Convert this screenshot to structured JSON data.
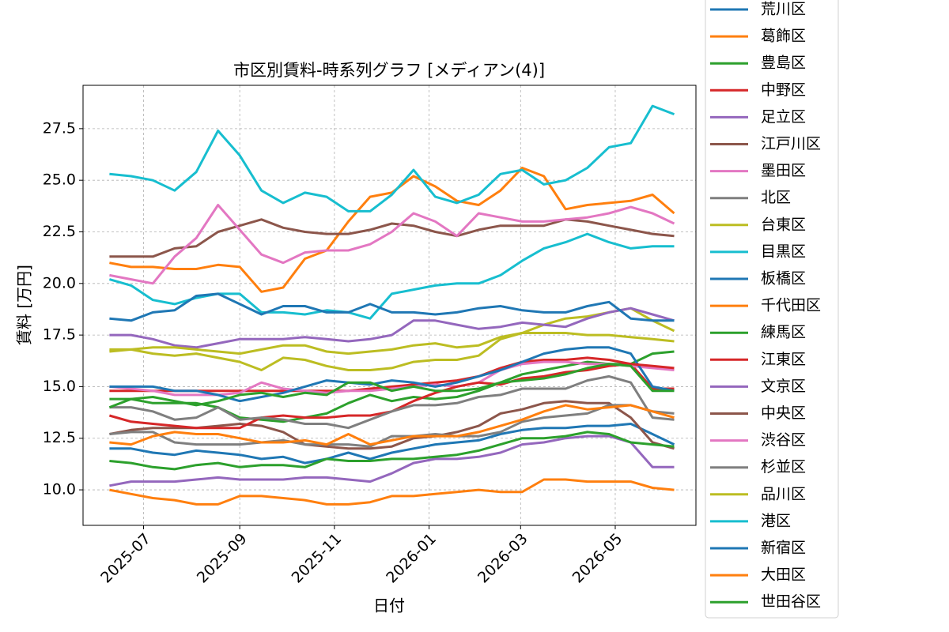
{
  "chart_data": {
    "type": "line",
    "title": "市区別賃料-時系列グラフ [メディアン(4)]",
    "xlabel": "日付",
    "ylabel": "賃料 [万円]",
    "x": [
      "2025-06-09",
      "2025-06-23",
      "2025-07-07",
      "2025-07-21",
      "2025-08-04",
      "2025-08-18",
      "2025-09-01",
      "2025-09-15",
      "2025-09-29",
      "2025-10-13",
      "2025-10-27",
      "2025-11-10",
      "2025-11-24",
      "2025-12-08",
      "2025-12-22",
      "2026-01-05",
      "2026-01-19",
      "2026-02-02",
      "2026-02-16",
      "2026-03-02",
      "2026-03-16",
      "2026-03-30",
      "2026-04-13",
      "2026-04-27",
      "2026-05-11",
      "2026-05-25",
      "2026-06-08"
    ],
    "xlim": [
      "2025-05-23",
      "2026-06-22"
    ],
    "xticks": [
      "2025-07",
      "2025-09",
      "2025-11",
      "2026-01",
      "2026-03",
      "2026-05"
    ],
    "ylim": [
      8.28,
      29.6
    ],
    "yticks": [
      {
        "value": 10,
        "label": "10.0"
      },
      12.5,
      {
        "value": 15,
        "label": "15.0"
      },
      17.5,
      {
        "value": 20,
        "label": "20.0"
      },
      22.5,
      {
        "value": 25,
        "label": "25.0"
      },
      27.5
    ],
    "grid": true,
    "legend": "outside right",
    "series": [
      {
        "name": "荒川区",
        "color": "#1f77b4",
        "values": [
          12.0,
          12.0,
          11.8,
          11.7,
          11.9,
          11.8,
          11.7,
          11.5,
          11.6,
          11.3,
          11.5,
          11.8,
          11.5,
          11.8,
          12.0,
          12.2,
          12.3,
          12.4,
          12.7,
          12.9,
          13.0,
          13.0,
          13.1,
          13.1,
          13.2,
          12.7,
          12.2
        ]
      },
      {
        "name": "葛飾区",
        "color": "#ff7f0e",
        "values": [
          10.0,
          9.8,
          9.6,
          9.5,
          9.3,
          9.3,
          9.7,
          9.7,
          9.6,
          9.5,
          9.3,
          9.3,
          9.4,
          9.7,
          9.7,
          9.8,
          9.9,
          10.0,
          9.9,
          9.9,
          10.5,
          10.5,
          10.4,
          10.4,
          10.4,
          10.1,
          10.0
        ]
      },
      {
        "name": "豊島区",
        "color": "#2ca02c",
        "values": [
          14.4,
          14.4,
          14.2,
          14.2,
          14.2,
          14.0,
          13.5,
          13.4,
          13.3,
          13.5,
          13.7,
          14.2,
          14.6,
          14.3,
          14.5,
          14.4,
          14.5,
          14.8,
          15.2,
          15.6,
          15.8,
          16.0,
          16.2,
          16.1,
          16.1,
          16.6,
          16.7
        ]
      },
      {
        "name": "中野区",
        "color": "#d62728",
        "values": [
          14.8,
          14.8,
          14.8,
          14.8,
          14.8,
          14.8,
          14.8,
          14.8,
          14.8,
          14.8,
          14.8,
          14.8,
          14.9,
          15.0,
          15.1,
          15.2,
          15.3,
          15.5,
          15.9,
          16.2,
          16.3,
          16.3,
          16.4,
          16.3,
          16.1,
          14.9,
          14.9
        ]
      },
      {
        "name": "足立区",
        "color": "#9467bd",
        "values": [
          10.2,
          10.4,
          10.4,
          10.4,
          10.5,
          10.6,
          10.5,
          10.5,
          10.5,
          10.6,
          10.6,
          10.5,
          10.4,
          10.8,
          11.3,
          11.5,
          11.5,
          11.6,
          11.8,
          12.2,
          12.3,
          12.5,
          12.6,
          12.6,
          12.3,
          11.1,
          11.1
        ]
      },
      {
        "name": "江戸川区",
        "color": "#8c564b",
        "values": [
          12.7,
          12.9,
          13.0,
          13.0,
          13.0,
          13.1,
          13.2,
          13.1,
          12.8,
          12.2,
          12.1,
          12.0,
          12.0,
          12.1,
          12.5,
          12.6,
          12.8,
          13.1,
          13.7,
          13.9,
          14.2,
          14.3,
          14.2,
          14.2,
          13.5,
          12.3,
          12.0
        ]
      },
      {
        "name": "墨田区",
        "color": "#e377c2",
        "values": [
          15.0,
          14.9,
          14.8,
          14.6,
          14.6,
          14.6,
          14.7,
          15.2,
          14.9,
          14.8,
          14.7,
          14.8,
          14.8,
          14.9,
          15.0,
          15.1,
          15.0,
          15.2,
          15.8,
          16.1,
          16.2,
          16.2,
          16.1,
          16.1,
          16.0,
          15.9,
          15.8
        ]
      },
      {
        "name": "北区",
        "color": "#7f7f7f",
        "values": [
          12.7,
          12.8,
          12.8,
          12.3,
          12.2,
          12.2,
          12.2,
          12.3,
          12.4,
          12.2,
          12.2,
          12.2,
          12.1,
          12.6,
          12.6,
          12.7,
          12.6,
          12.6,
          12.8,
          13.3,
          13.5,
          13.6,
          13.7,
          14.1,
          14.1,
          13.8,
          13.7
        ]
      },
      {
        "name": "台東区",
        "color": "#bcbd22",
        "values": [
          16.8,
          16.8,
          16.6,
          16.5,
          16.6,
          16.4,
          16.2,
          15.8,
          16.4,
          16.3,
          16.0,
          15.8,
          15.8,
          15.9,
          16.2,
          16.3,
          16.3,
          16.5,
          17.3,
          17.6,
          18.0,
          18.3,
          18.4,
          18.6,
          18.8,
          18.2,
          17.7
        ]
      },
      {
        "name": "目黒区",
        "color": "#17becf",
        "values": [
          20.2,
          19.9,
          19.2,
          19.0,
          19.3,
          19.5,
          19.5,
          18.6,
          18.6,
          18.5,
          18.7,
          18.6,
          18.3,
          19.5,
          19.7,
          19.9,
          20.0,
          20.0,
          20.4,
          21.1,
          21.7,
          22.0,
          22.4,
          22.0,
          21.7,
          21.8,
          21.8
        ]
      },
      {
        "name": "板橋区",
        "color": "#1f77b4",
        "values": [
          15.0,
          15.0,
          15.0,
          14.8,
          14.8,
          14.6,
          14.3,
          14.5,
          14.7,
          15.0,
          15.3,
          15.2,
          15.1,
          15.3,
          15.2,
          15.0,
          15.2,
          15.5,
          15.8,
          16.2,
          16.6,
          16.8,
          16.9,
          16.9,
          16.6,
          15.0,
          14.8
        ]
      },
      {
        "name": "千代田区",
        "color": "#ff7f0e",
        "values": [
          21.0,
          20.8,
          20.8,
          20.7,
          20.7,
          20.9,
          20.8,
          19.6,
          19.8,
          21.2,
          21.6,
          23.0,
          24.2,
          24.4,
          25.2,
          24.7,
          24.0,
          23.8,
          24.5,
          25.6,
          25.2,
          23.6,
          23.8,
          23.9,
          24.0,
          24.3,
          23.4
        ]
      },
      {
        "name": "練馬区",
        "color": "#2ca02c",
        "values": [
          11.4,
          11.3,
          11.1,
          11.0,
          11.2,
          11.3,
          11.1,
          11.2,
          11.2,
          11.1,
          11.5,
          11.4,
          11.4,
          11.5,
          11.5,
          11.6,
          11.7,
          11.9,
          12.2,
          12.5,
          12.5,
          12.6,
          12.8,
          12.7,
          12.3,
          12.2,
          12.1
        ]
      },
      {
        "name": "江東区",
        "color": "#d62728",
        "values": [
          13.6,
          13.3,
          13.2,
          13.1,
          13.0,
          13.0,
          13.0,
          13.5,
          13.6,
          13.5,
          13.5,
          13.6,
          13.6,
          13.8,
          14.3,
          14.7,
          15.0,
          15.2,
          15.1,
          15.4,
          15.5,
          15.7,
          15.8,
          16.0,
          16.1,
          16.0,
          15.9
        ]
      },
      {
        "name": "文京区",
        "color": "#9467bd",
        "values": [
          17.5,
          17.5,
          17.3,
          17.0,
          16.9,
          17.1,
          17.3,
          17.3,
          17.3,
          17.4,
          17.3,
          17.2,
          17.3,
          17.5,
          18.2,
          18.2,
          18.0,
          17.8,
          17.9,
          18.1,
          18.0,
          17.9,
          18.3,
          18.6,
          18.8,
          18.5,
          18.2
        ]
      },
      {
        "name": "中央区",
        "color": "#8c564b",
        "values": [
          21.3,
          21.3,
          21.3,
          21.7,
          21.8,
          22.5,
          22.8,
          23.1,
          22.7,
          22.5,
          22.4,
          22.4,
          22.6,
          22.9,
          22.8,
          22.5,
          22.3,
          22.6,
          22.8,
          22.8,
          22.8,
          23.1,
          23.0,
          22.8,
          22.6,
          22.4,
          22.3
        ]
      },
      {
        "name": "渋谷区",
        "color": "#e377c2",
        "values": [
          20.4,
          20.2,
          20.0,
          21.3,
          22.2,
          23.8,
          22.6,
          21.4,
          21.0,
          21.5,
          21.6,
          21.6,
          21.9,
          22.5,
          23.4,
          23.0,
          22.3,
          23.4,
          23.2,
          23.0,
          23.0,
          23.1,
          23.2,
          23.4,
          23.7,
          23.4,
          22.9
        ]
      },
      {
        "name": "杉並区",
        "color": "#7f7f7f",
        "values": [
          14.0,
          14.0,
          13.8,
          13.4,
          13.5,
          14.0,
          13.4,
          13.5,
          13.4,
          13.2,
          13.2,
          13.0,
          13.4,
          13.8,
          14.1,
          14.1,
          14.2,
          14.5,
          14.6,
          14.9,
          14.9,
          14.9,
          15.3,
          15.5,
          15.2,
          13.5,
          13.4
        ]
      },
      {
        "name": "品川区",
        "color": "#bcbd22",
        "values": [
          16.7,
          16.8,
          16.9,
          16.9,
          16.8,
          16.7,
          16.6,
          16.8,
          17.0,
          17.0,
          16.7,
          16.6,
          16.7,
          16.8,
          17.0,
          17.1,
          16.9,
          17.0,
          17.4,
          17.6,
          17.6,
          17.6,
          17.5,
          17.5,
          17.4,
          17.3,
          17.2
        ]
      },
      {
        "name": "港区",
        "color": "#17becf",
        "values": [
          25.3,
          25.2,
          25.0,
          24.5,
          25.4,
          27.4,
          26.2,
          24.5,
          23.9,
          24.4,
          24.2,
          23.5,
          23.5,
          24.3,
          25.5,
          24.2,
          23.9,
          24.3,
          25.3,
          25.5,
          24.8,
          25.0,
          25.6,
          26.6,
          26.8,
          28.6,
          28.2
        ]
      },
      {
        "name": "新宿区",
        "color": "#1f77b4",
        "values": [
          18.3,
          18.2,
          18.6,
          18.7,
          19.4,
          19.5,
          19.0,
          18.5,
          18.9,
          18.9,
          18.6,
          18.6,
          19.0,
          18.6,
          18.6,
          18.5,
          18.6,
          18.8,
          18.9,
          18.7,
          18.6,
          18.6,
          18.9,
          19.1,
          18.3,
          18.2,
          18.2
        ]
      },
      {
        "name": "大田区",
        "color": "#ff7f0e",
        "values": [
          12.3,
          12.2,
          12.6,
          12.8,
          12.7,
          12.7,
          12.5,
          12.3,
          12.3,
          12.4,
          12.2,
          12.7,
          12.2,
          12.4,
          12.6,
          12.6,
          12.6,
          12.8,
          13.1,
          13.4,
          13.8,
          14.1,
          13.9,
          14.0,
          14.1,
          13.8,
          13.5
        ]
      },
      {
        "name": "世田谷区",
        "color": "#2ca02c",
        "values": [
          14.0,
          14.4,
          14.5,
          14.3,
          14.1,
          14.3,
          14.6,
          14.7,
          14.5,
          14.7,
          14.6,
          15.2,
          15.2,
          14.8,
          15.0,
          14.8,
          14.8,
          14.9,
          15.2,
          15.3,
          15.4,
          15.6,
          15.9,
          16.1,
          16.0,
          14.8,
          14.8
        ]
      }
    ]
  }
}
